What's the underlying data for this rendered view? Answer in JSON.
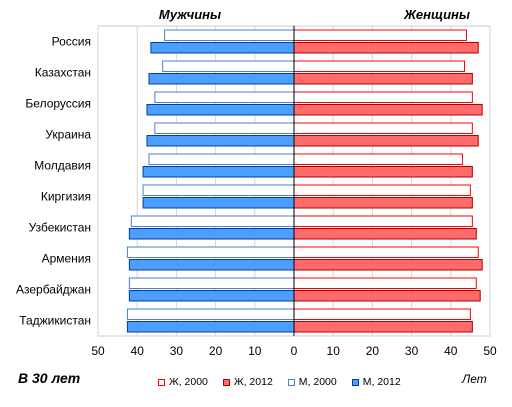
{
  "chart_data": {
    "type": "bar",
    "orientation": "horizontal-butterfly",
    "left_panel_title": "Мужчины",
    "right_panel_title": "Женщины",
    "categories": [
      "Россия",
      "Казахстан",
      "Белоруссия",
      "Украина",
      "Молдавия",
      "Киргизия",
      "Узбекистан",
      "Армения",
      "Азербайджан",
      "Таджикистан"
    ],
    "series": [
      {
        "name": "Ж, 2000",
        "side": "right",
        "style": "outline",
        "color": "#ff0000",
        "values": [
          44.0,
          43.5,
          45.5,
          45.5,
          43.0,
          45.0,
          45.5,
          47.0,
          46.5,
          45.0
        ]
      },
      {
        "name": "Ж, 2012",
        "side": "right",
        "style": "filled",
        "color": "#ff6b6b",
        "values": [
          47.0,
          45.5,
          48.0,
          47.0,
          45.5,
          45.5,
          46.5,
          48.0,
          47.5,
          45.5
        ]
      },
      {
        "name": "М, 2000",
        "side": "left",
        "style": "outline",
        "color": "#4a7fd4",
        "values": [
          33.0,
          33.5,
          35.5,
          35.5,
          37.0,
          38.5,
          41.5,
          42.5,
          42.0,
          42.5
        ]
      },
      {
        "name": "М, 2012",
        "side": "left",
        "style": "filled",
        "color": "#4d9fff",
        "values": [
          36.5,
          37.0,
          37.5,
          37.5,
          38.5,
          38.5,
          42.0,
          42.0,
          42.0,
          42.5
        ]
      }
    ],
    "x_ticks": [
      "50",
      "40",
      "30",
      "20",
      "10",
      "0",
      "10",
      "20",
      "30",
      "40",
      "50"
    ],
    "xlim": [
      0,
      50
    ],
    "grid": true,
    "legend_position": "bottom"
  },
  "notes": {
    "bottom_left": "В 30 лет",
    "unit": "Лет"
  }
}
